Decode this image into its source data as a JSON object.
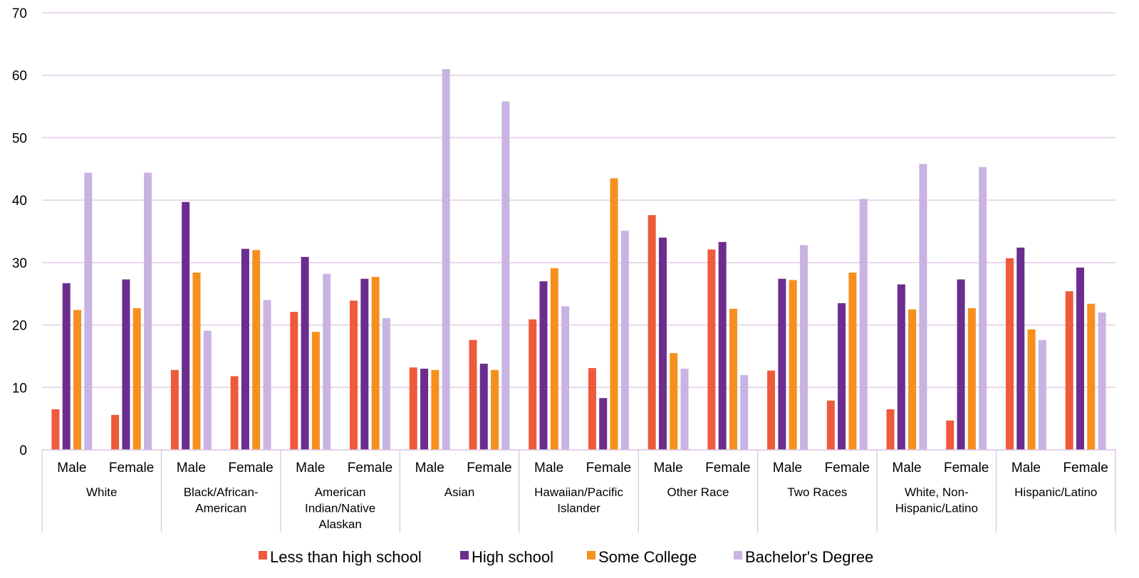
{
  "colors": {
    "gridline": "#e3cdea",
    "axis": "#d9c2e2",
    "less_than_high_school": "#ee5a3c",
    "high_school": "#6b2d8e",
    "some_college": "#f5901f",
    "bachelors_degree": "#c9b3e3"
  },
  "chart_data": {
    "type": "bar",
    "title": "",
    "xlabel": "",
    "ylabel": "",
    "ylim": [
      0,
      70
    ],
    "yticks": [
      0,
      10,
      20,
      30,
      40,
      50,
      60,
      70
    ],
    "grid": true,
    "legend_position": "bottom",
    "groups": [
      {
        "name": "White",
        "label_lines": [
          "White"
        ]
      },
      {
        "name": "Black/African-American",
        "label_lines": [
          "Black/African-",
          "American"
        ]
      },
      {
        "name": "American Indian/Native Alaskan",
        "label_lines": [
          "American",
          "Indian/Native",
          "Alaskan"
        ]
      },
      {
        "name": "Asian",
        "label_lines": [
          "Asian"
        ]
      },
      {
        "name": "Hawaiian/Pacific Islander",
        "label_lines": [
          "Hawaiian/Pacific",
          "Islander"
        ]
      },
      {
        "name": "Other Race",
        "label_lines": [
          "Other Race"
        ]
      },
      {
        "name": "Two Races",
        "label_lines": [
          "Two Races"
        ]
      },
      {
        "name": "White, Non-Hispanic/Latino",
        "label_lines": [
          "White, Non-",
          "Hispanic/Latino"
        ]
      },
      {
        "name": "Hispanic/Latino",
        "label_lines": [
          "Hispanic/Latino"
        ]
      }
    ],
    "subcategories": [
      "Male",
      "Female"
    ],
    "series": [
      {
        "name": "Less than high school",
        "color_key": "less_than_high_school",
        "values": [
          6.5,
          5.6,
          12.8,
          11.8,
          22.1,
          23.9,
          13.2,
          17.6,
          20.9,
          13.1,
          37.6,
          32.1,
          12.7,
          7.9,
          6.5,
          4.7,
          30.7,
          25.4
        ]
      },
      {
        "name": "High school",
        "color_key": "high_school",
        "values": [
          26.7,
          27.3,
          39.7,
          32.2,
          30.9,
          27.4,
          13.0,
          13.8,
          27.0,
          8.3,
          34.0,
          33.3,
          27.4,
          23.5,
          26.5,
          27.3,
          32.4,
          29.2
        ]
      },
      {
        "name": "Some College",
        "color_key": "some_college",
        "values": [
          22.4,
          22.7,
          28.4,
          32.0,
          18.9,
          27.7,
          12.8,
          12.8,
          29.1,
          43.5,
          15.5,
          22.6,
          27.2,
          28.4,
          22.5,
          22.7,
          19.3,
          23.4
        ]
      },
      {
        "name": "Bachelor's Degree",
        "color_key": "bachelors_degree",
        "values": [
          44.4,
          44.4,
          19.1,
          24.0,
          28.2,
          21.1,
          61.0,
          55.8,
          23.0,
          35.1,
          13.0,
          12.0,
          32.8,
          40.2,
          45.8,
          45.3,
          17.6,
          22.0
        ]
      }
    ]
  }
}
